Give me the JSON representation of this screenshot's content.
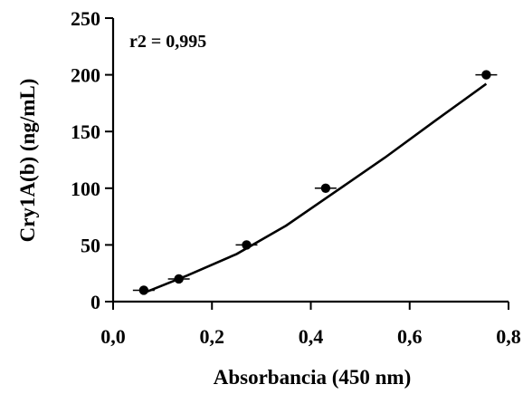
{
  "chart_data": {
    "type": "scatter",
    "title": "",
    "xlabel": "Absorbancia (450 nm)",
    "ylabel": "Cry1A(b) (ng/mL)",
    "xlim": [
      0,
      0.8
    ],
    "ylim": [
      0,
      250
    ],
    "x_ticks": [
      0,
      0.2,
      0.4,
      0.6,
      0.8
    ],
    "x_tick_labels": [
      "0,0",
      "0,2",
      "0,4",
      "0,6",
      "0,8"
    ],
    "y_ticks": [
      0,
      50,
      100,
      150,
      200,
      250
    ],
    "y_tick_labels": [
      "0",
      "50",
      "100",
      "150",
      "200",
      "250"
    ],
    "grid": false,
    "legend": "none",
    "annotation": "r2 = 0,995",
    "series": [
      {
        "kind": "points",
        "x": [
          0.062,
          0.133,
          0.27,
          0.43,
          0.755
        ],
        "y": [
          10,
          20,
          50,
          100,
          200
        ]
      },
      {
        "kind": "fit-line",
        "x": [
          0.07,
          0.15,
          0.25,
          0.35,
          0.45,
          0.55,
          0.65,
          0.755
        ],
        "y": [
          9,
          23,
          42,
          67,
          97,
          127,
          159,
          192
        ]
      }
    ],
    "colors": {
      "points": "#000000",
      "line": "#000000"
    }
  }
}
